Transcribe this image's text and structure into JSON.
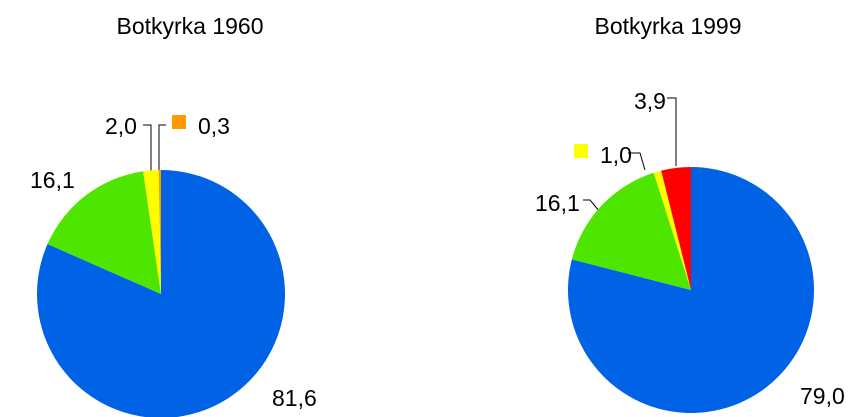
{
  "chart_data": [
    {
      "type": "pie",
      "title": "Botkyrka 1960",
      "categories": [
        null,
        null,
        null,
        null
      ],
      "values": [
        81.6,
        16.1,
        2.0,
        0.3
      ],
      "value_labels": [
        "81,6",
        "16,1",
        "2,0",
        "0,3"
      ],
      "colors": [
        "#0063e6",
        "#4ee600",
        "#ffff00",
        "#ff9900"
      ]
    },
    {
      "type": "pie",
      "title": "Botkyrka 1999",
      "categories": [
        null,
        null,
        null,
        null
      ],
      "values": [
        79.0,
        16.1,
        1.0,
        3.9
      ],
      "value_labels": [
        "79,0",
        "16,1",
        "1,0",
        "3,9"
      ],
      "colors": [
        "#0063e6",
        "#4ee600",
        "#ffff00",
        "#ff0000"
      ]
    }
  ]
}
